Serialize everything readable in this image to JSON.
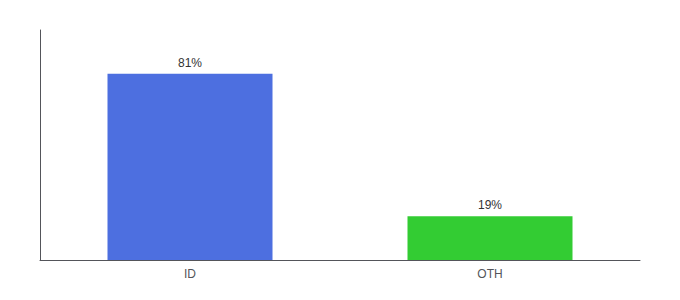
{
  "chart_data": {
    "type": "bar",
    "categories": [
      "ID",
      "OTH"
    ],
    "values": [
      81,
      19
    ],
    "value_labels": [
      "81%",
      "19%"
    ],
    "colors": [
      "#4d6fe0",
      "#33cc33"
    ],
    "ylim": [
      0,
      100
    ],
    "yticks": [],
    "grid": false,
    "tick_labels": "x",
    "data_labels": true
  }
}
